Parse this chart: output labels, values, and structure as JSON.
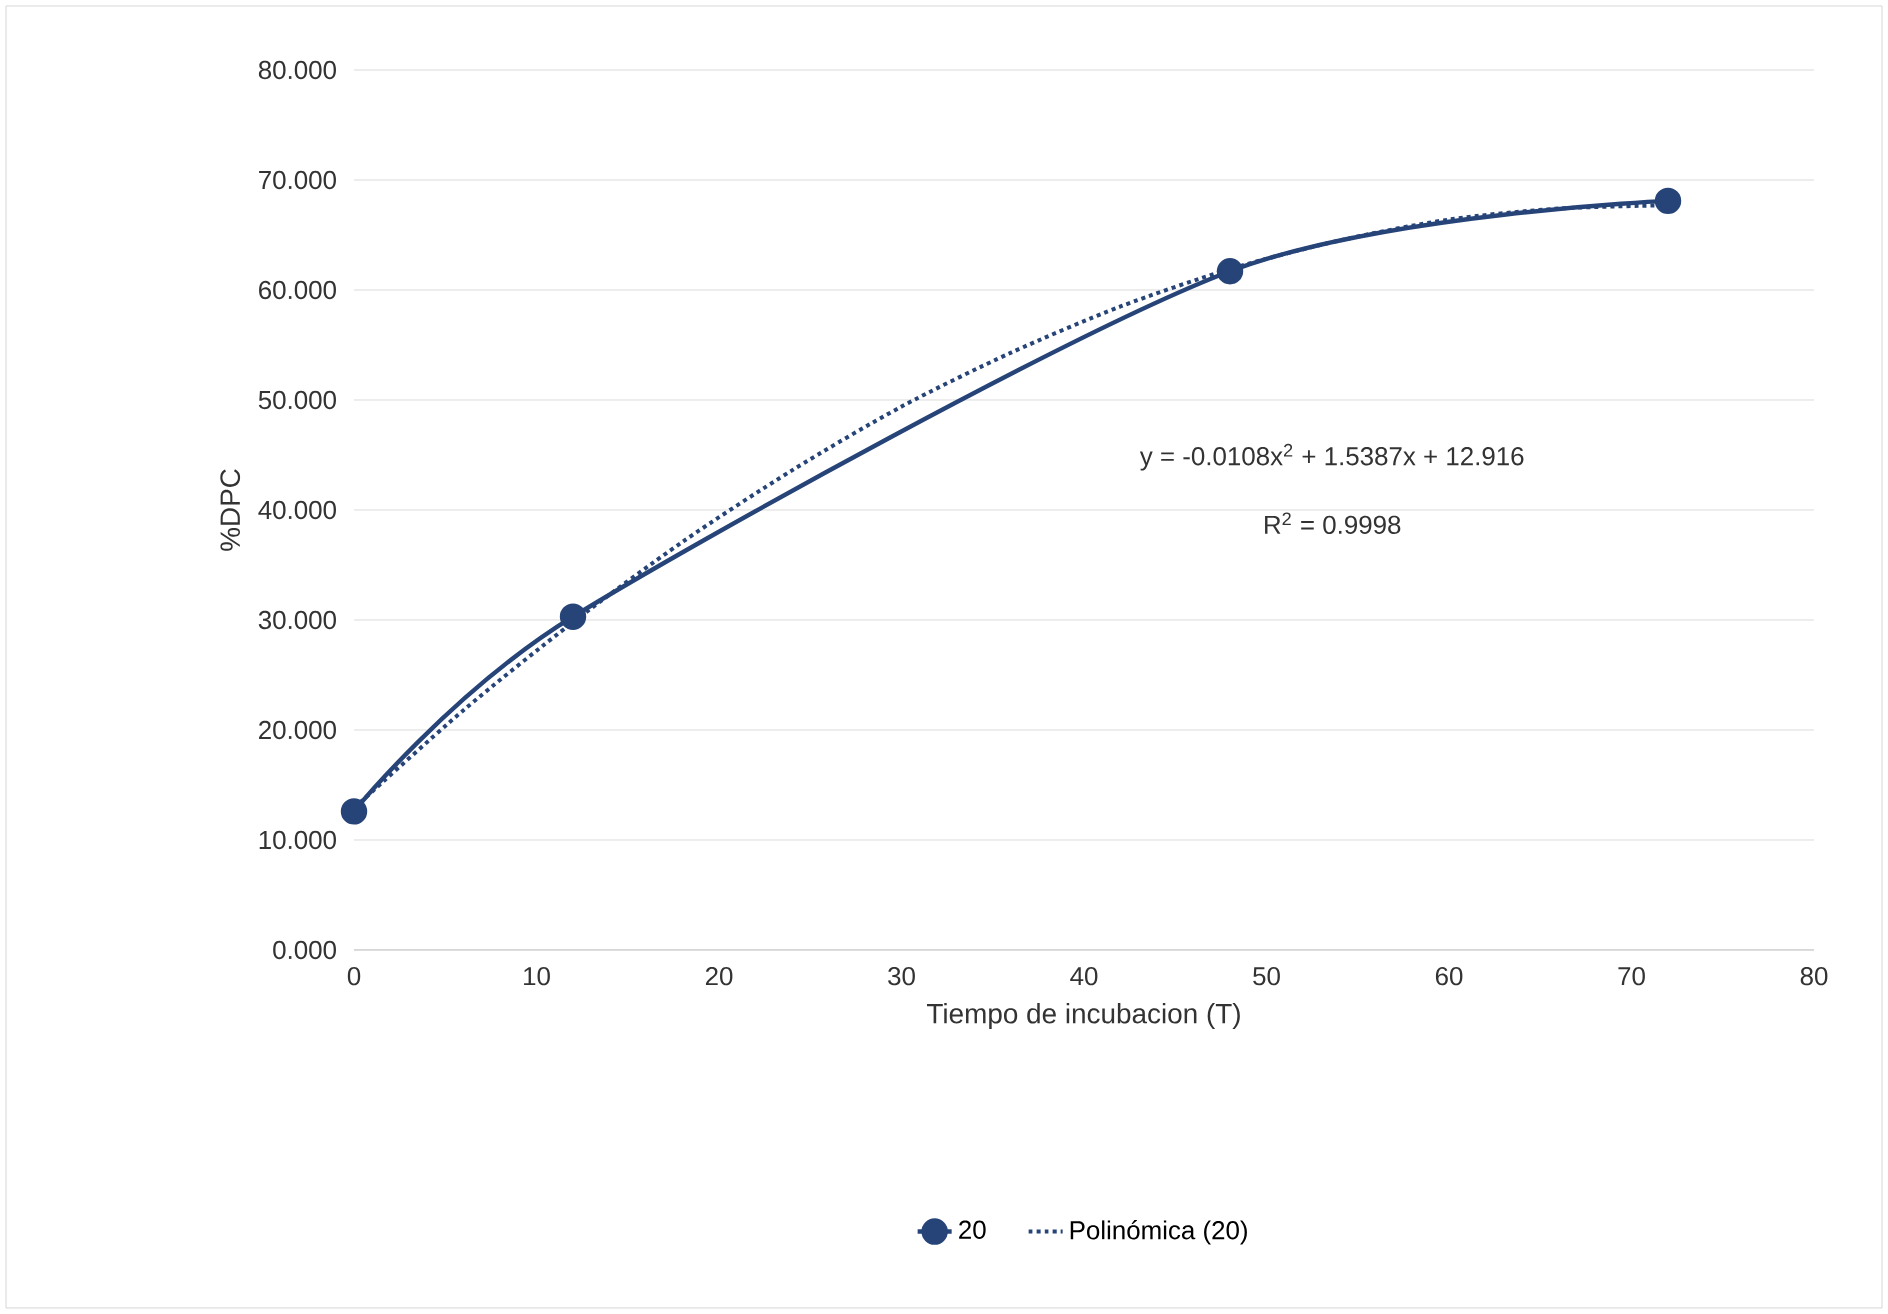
{
  "chart_data": {
    "type": "line",
    "xlabel": "Tiempo de incubacion (T)",
    "ylabel": "%DPC",
    "xlim": [
      0,
      80
    ],
    "xticks": [
      0,
      10,
      20,
      30,
      40,
      50,
      60,
      70,
      80
    ],
    "ylim": [
      0,
      80
    ],
    "yticks": [
      {
        "value": 0,
        "label": "0.000"
      },
      {
        "value": 10,
        "label": "10.000"
      },
      {
        "value": 20,
        "label": "20.000"
      },
      {
        "value": 30,
        "label": "30.000"
      },
      {
        "value": 40,
        "label": "40.000"
      },
      {
        "value": 50,
        "label": "50.000"
      },
      {
        "value": 60,
        "label": "60.000"
      },
      {
        "value": 70,
        "label": "70.000"
      },
      {
        "value": 80,
        "label": "80.000"
      }
    ],
    "grid": "y",
    "legend": "bottom",
    "marker": "circle",
    "annotations": [
      "y = -0.0108x$^{2}$ + 1.5387x + 12.916",
      "R$^{2}$ = 0.9998"
    ],
    "series": [
      {
        "name": "20",
        "color": "#264478",
        "x": [
          0,
          12,
          48,
          72
        ],
        "values": [
          12.6,
          30.3,
          61.7,
          68.1
        ]
      },
      {
        "name": "Polinómica (20)",
        "color": "#264478",
        "line_style": "dotted",
        "marker": "none",
        "x": [
          0,
          6,
          12,
          18,
          24,
          30,
          36,
          42,
          48,
          54,
          60,
          66,
          72
        ],
        "values": [
          12.9,
          21.8,
          29.8,
          37.1,
          43.6,
          49.4,
          54.3,
          58.5,
          61.9,
          64.5,
          66.4,
          67.4,
          67.7
        ]
      }
    ]
  }
}
